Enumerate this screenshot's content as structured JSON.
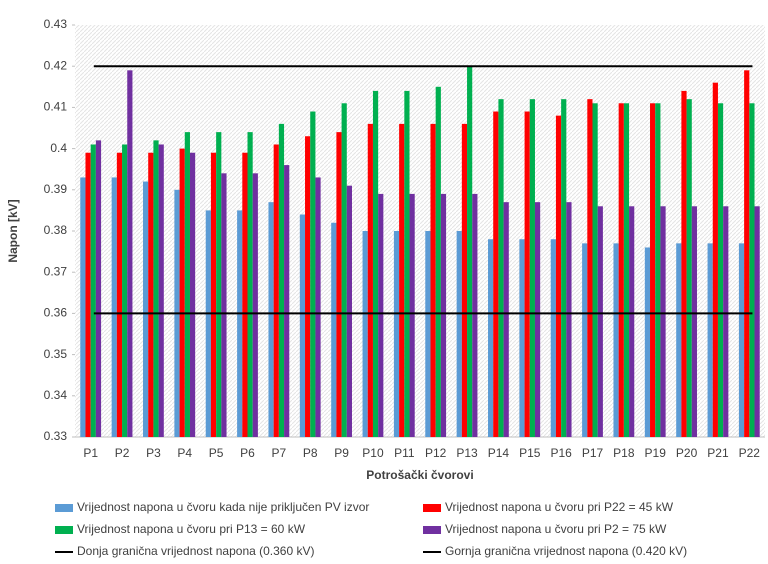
{
  "chart_data": {
    "type": "bar",
    "y_label": "Napon [kV]",
    "x_label": "Potrošački čvorovi",
    "categories": [
      "P1",
      "P2",
      "P3",
      "P4",
      "P5",
      "P6",
      "P7",
      "P8",
      "P9",
      "P10",
      "P11",
      "P12",
      "P13",
      "P14",
      "P15",
      "P16",
      "P17",
      "P18",
      "P19",
      "P20",
      "P21",
      "P22"
    ],
    "series": [
      {
        "name": "Vrijednost napona u čvoru kada nije priključen PV izvor",
        "color": "#5b9bd5",
        "values": [
          0.393,
          0.393,
          0.392,
          0.39,
          0.385,
          0.385,
          0.387,
          0.384,
          0.382,
          0.38,
          0.38,
          0.38,
          0.38,
          0.378,
          0.378,
          0.378,
          0.377,
          0.377,
          0.376,
          0.377,
          0.377,
          0.377
        ]
      },
      {
        "name": "Vrijednost napona u čvoru pri P22 = 45 kW",
        "color": "#ff0000",
        "values": [
          0.399,
          0.399,
          0.399,
          0.4,
          0.399,
          0.399,
          0.401,
          0.403,
          0.404,
          0.406,
          0.406,
          0.406,
          0.406,
          0.409,
          0.409,
          0.408,
          0.412,
          0.411,
          0.411,
          0.414,
          0.416,
          0.419
        ]
      },
      {
        "name": "Vrijednost napona u čvoru pri P13 = 60 kW",
        "color": "#00b050",
        "values": [
          0.401,
          0.401,
          0.402,
          0.404,
          0.404,
          0.404,
          0.406,
          0.409,
          0.411,
          0.414,
          0.414,
          0.415,
          0.42,
          0.412,
          0.412,
          0.412,
          0.411,
          0.411,
          0.411,
          0.412,
          0.411,
          0.411
        ]
      },
      {
        "name": "Vrijednost napona u čvoru pri P2 = 75 kW",
        "color": "#7030a0",
        "values": [
          0.402,
          0.419,
          0.401,
          0.399,
          0.394,
          0.394,
          0.396,
          0.393,
          0.391,
          0.389,
          0.389,
          0.389,
          0.389,
          0.387,
          0.387,
          0.387,
          0.386,
          0.386,
          0.386,
          0.386,
          0.386,
          0.386
        ]
      }
    ],
    "reference_lines": [
      {
        "name": "Donja granična vrijednost napona (0.360 kV)",
        "color": "#000000",
        "value": 0.36
      },
      {
        "name": "Gornja granična vrijednost napona (0.420 kV)",
        "color": "#000000",
        "value": 0.42
      }
    ],
    "ylim": [
      0.33,
      0.43
    ],
    "yticks": [
      0.33,
      0.34,
      0.35,
      0.36,
      0.37,
      0.38,
      0.39,
      0.4,
      0.41,
      0.42,
      0.43
    ]
  }
}
